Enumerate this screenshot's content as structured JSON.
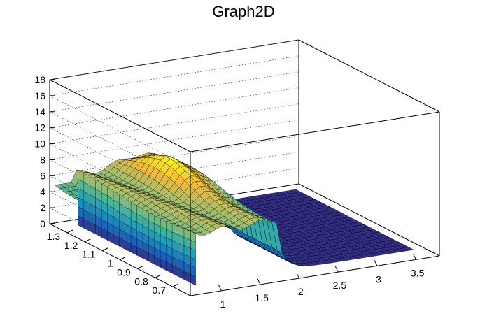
{
  "chart_data": {
    "type": "surface",
    "title": "Graph2D",
    "xlabel": "",
    "ylabel": "",
    "zlabel": "",
    "xlim": [
      0.6,
      3.8
    ],
    "ylim": [
      0.6,
      1.4
    ],
    "zlim": [
      0,
      18
    ],
    "x_ticks": [
      "1",
      "1.5",
      "2",
      "2.5",
      "3",
      "3.5"
    ],
    "y_ticks": [
      "0.7",
      "0.8",
      "0.9",
      "1",
      "1.1",
      "1.2",
      "1.3"
    ],
    "z_ticks": [
      "0",
      "2",
      "4",
      "6",
      "8",
      "10",
      "12",
      "14",
      "16",
      "18"
    ],
    "grid": true,
    "colormap": [
      "#352a87",
      "#1966b9",
      "#1a97c1",
      "#44b69a",
      "#a5be6b",
      "#f4ba3b",
      "#f9fb0e"
    ],
    "surface_summary": {
      "x_plateau_start": 0.8,
      "x_plateau_end": 1.9,
      "plateau_height": 6.5,
      "peak_height": 9.8,
      "tail_x_range": [
        1.9,
        3.6
      ],
      "tail_height": 0.1
    }
  }
}
